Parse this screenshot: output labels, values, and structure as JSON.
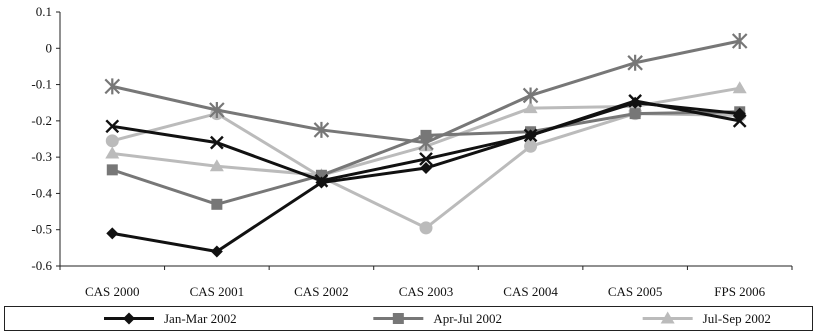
{
  "chart_data": {
    "type": "line",
    "title": "",
    "xlabel": "",
    "ylabel": "",
    "categories": [
      "CAS 2000",
      "CAS 2001",
      "CAS 2002",
      "CAS 2003",
      "CAS 2004",
      "CAS 2005",
      "FPS 2006"
    ],
    "ylim": [
      -0.6,
      0.1
    ],
    "yticks": [
      0.1,
      0,
      -0.1,
      -0.2,
      -0.3,
      -0.4,
      -0.5,
      -0.6
    ],
    "ytick_labels": [
      "0.1",
      "0",
      "-0.1",
      "-0.2",
      "-0.3",
      "-0.4",
      "-0.5",
      "-0.6"
    ],
    "grid": false,
    "legend_position": "bottom",
    "series": [
      {
        "name": "Jan-Mar 2002",
        "values": [
          -0.51,
          -0.56,
          -0.37,
          -0.33,
          -0.24,
          -0.15,
          -0.18
        ],
        "color": "#111111",
        "marker": "diamond",
        "legend": true
      },
      {
        "name": "Apr-Jul 2002",
        "values": [
          -0.335,
          -0.43,
          -0.35,
          -0.24,
          -0.23,
          -0.18,
          -0.175
        ],
        "color": "#777777",
        "marker": "square",
        "legend": true
      },
      {
        "name": "Jul-Sep 2002",
        "values": [
          -0.29,
          -0.325,
          -0.35,
          -0.27,
          -0.165,
          -0.16,
          -0.11
        ],
        "color": "#bbbbbb",
        "marker": "triangle",
        "legend": true
      },
      {
        "name": "",
        "values": [
          -0.215,
          -0.26,
          -0.365,
          -0.305,
          -0.24,
          -0.145,
          -0.2
        ],
        "color": "#111111",
        "marker": "x",
        "legend": false
      },
      {
        "name": "",
        "values": [
          -0.105,
          -0.17,
          -0.225,
          -0.26,
          -0.13,
          -0.04,
          0.02
        ],
        "color": "#777777",
        "marker": "star",
        "legend": false
      },
      {
        "name": "",
        "values": [
          -0.255,
          -0.18,
          -0.355,
          -0.495,
          -0.27,
          -0.18,
          -0.185
        ],
        "color": "#bbbbbb",
        "marker": "circle",
        "legend": false
      }
    ]
  }
}
